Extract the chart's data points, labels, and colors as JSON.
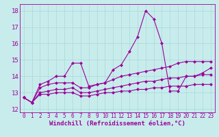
{
  "xlabel": "Windchill (Refroidissement éolien,°C)",
  "bg_color": "#c8ecec",
  "grid_color": "#b0d0d0",
  "line_color": "#990099",
  "x_ticks": [
    0,
    1,
    2,
    3,
    4,
    5,
    6,
    7,
    8,
    9,
    10,
    11,
    12,
    13,
    14,
    15,
    16,
    17,
    18,
    19,
    20,
    21,
    22,
    23
  ],
  "ylim": [
    11.8,
    18.4
  ],
  "xlim": [
    -0.5,
    23.5
  ],
  "yticks": [
    12,
    13,
    14,
    15,
    16,
    17,
    18
  ],
  "series": [
    [
      12.7,
      12.4,
      13.5,
      13.7,
      14.0,
      14.0,
      14.8,
      14.8,
      13.4,
      13.5,
      13.6,
      14.4,
      14.7,
      15.5,
      16.4,
      18.0,
      17.5,
      16.0,
      13.1,
      13.1,
      14.0,
      14.0,
      14.2,
      14.5
    ],
    [
      12.7,
      12.4,
      13.3,
      13.5,
      13.6,
      13.6,
      13.6,
      13.3,
      13.3,
      13.5,
      13.6,
      13.8,
      14.0,
      14.1,
      14.2,
      14.3,
      14.4,
      14.5,
      14.6,
      14.8,
      14.9,
      14.9,
      14.9,
      14.9
    ],
    [
      12.7,
      12.4,
      13.0,
      13.1,
      13.2,
      13.2,
      13.3,
      13.0,
      13.0,
      13.1,
      13.2,
      13.3,
      13.4,
      13.5,
      13.6,
      13.7,
      13.7,
      13.8,
      13.9,
      13.9,
      14.0,
      14.0,
      14.1,
      14.1
    ],
    [
      12.7,
      12.4,
      12.9,
      12.9,
      13.0,
      13.0,
      13.0,
      12.8,
      12.8,
      12.9,
      13.0,
      13.0,
      13.1,
      13.1,
      13.2,
      13.2,
      13.3,
      13.3,
      13.4,
      13.4,
      13.4,
      13.5,
      13.5,
      13.5
    ]
  ],
  "marker": "D",
  "marker_size": 2,
  "line_width": 0.8,
  "font_size_xlabel": 6.5,
  "font_size_yticks": 6.5,
  "font_size_xticks": 5.5
}
